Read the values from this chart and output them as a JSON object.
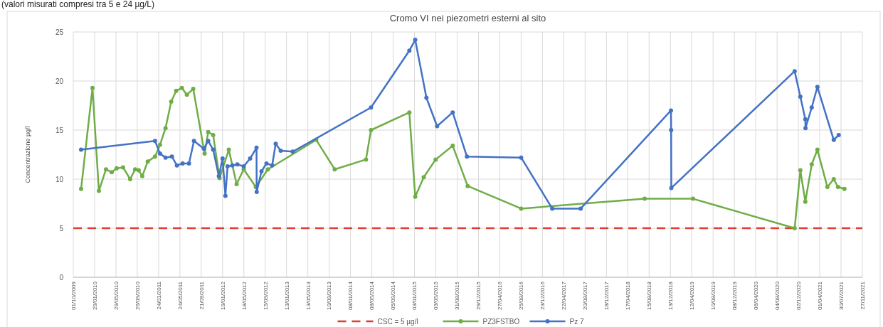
{
  "chart_data": {
    "type": "line",
    "title": "Cromo VI nei piezometri esterni al sito",
    "ylabel": "Concentrazione µg/l",
    "annotations": [
      "(valori misurati compresi tra 5 e 24 µg/L)"
    ],
    "xlim": [
      "2009-10-01",
      "2021-11-27"
    ],
    "xticks": [
      {
        "value": "2009-10-01",
        "label": "01/10/2009"
      },
      {
        "value": "2010-01-29",
        "label": "29/01/2010"
      },
      {
        "value": "2010-05-29",
        "label": "29/05/2010"
      },
      {
        "value": "2010-09-26",
        "label": "26/09/2010"
      },
      {
        "value": "2011-01-24",
        "label": "24/01/2011"
      },
      {
        "value": "2011-05-24",
        "label": "24/05/2011"
      },
      {
        "value": "2011-09-21",
        "label": "21/09/2011"
      },
      {
        "value": "2012-01-19",
        "label": "19/01/2012"
      },
      {
        "value": "2012-05-18",
        "label": "18/05/2012"
      },
      {
        "value": "2012-09-15",
        "label": "15/09/2012"
      },
      {
        "value": "2013-01-13",
        "label": "13/01/2013"
      },
      {
        "value": "2013-05-13",
        "label": "13/05/2013"
      },
      {
        "value": "2013-09-10",
        "label": "10/09/2013"
      },
      {
        "value": "2014-01-08",
        "label": "08/01/2014"
      },
      {
        "value": "2014-05-08",
        "label": "08/05/2014"
      },
      {
        "value": "2014-09-05",
        "label": "05/09/2014"
      },
      {
        "value": "2015-01-03",
        "label": "03/01/2015"
      },
      {
        "value": "2015-05-03",
        "label": "03/05/2015"
      },
      {
        "value": "2015-08-31",
        "label": "31/08/2015"
      },
      {
        "value": "2015-12-29",
        "label": "29/12/2015"
      },
      {
        "value": "2016-04-27",
        "label": "27/04/2016"
      },
      {
        "value": "2016-08-25",
        "label": "25/08/2016"
      },
      {
        "value": "2016-12-23",
        "label": "23/12/2016"
      },
      {
        "value": "2017-04-22",
        "label": "22/04/2017"
      },
      {
        "value": "2017-08-20",
        "label": "20/08/2017"
      },
      {
        "value": "2017-12-18",
        "label": "18/12/2017"
      },
      {
        "value": "2018-04-17",
        "label": "17/04/2018"
      },
      {
        "value": "2018-08-15",
        "label": "15/08/2018"
      },
      {
        "value": "2018-12-13",
        "label": "13/12/2018"
      },
      {
        "value": "2019-04-12",
        "label": "12/04/2019"
      },
      {
        "value": "2019-08-10",
        "label": "10/08/2019"
      },
      {
        "value": "2019-12-08",
        "label": "08/12/2019"
      },
      {
        "value": "2020-04-06",
        "label": "06/04/2020"
      },
      {
        "value": "2020-08-04",
        "label": "04/08/2020"
      },
      {
        "value": "2020-12-02",
        "label": "02/12/2020"
      },
      {
        "value": "2021-04-01",
        "label": "01/04/2021"
      },
      {
        "value": "2021-07-30",
        "label": "30/07/2021"
      },
      {
        "value": "2021-11-27",
        "label": "27/11/2021"
      }
    ],
    "ylim": [
      0,
      25
    ],
    "yticks": [
      0,
      5,
      10,
      15,
      20,
      25
    ],
    "grid": true,
    "legend": "bottom",
    "marker": "circle",
    "ref_lines": [
      {
        "axis": "y",
        "value": 5,
        "label": "CSC = 5 µg/l",
        "color": "#e03c31",
        "line_style": "dashed"
      }
    ],
    "series": [
      {
        "name": "PZ3FSTBO",
        "color": "#70ad47",
        "x": [
          "2009-11-14",
          "2010-01-17",
          "2010-02-22",
          "2010-04-03",
          "2010-05-05",
          "2010-06-02",
          "2010-07-08",
          "2010-08-17",
          "2010-09-14",
          "2010-10-04",
          "2010-10-24",
          "2010-11-24",
          "2011-01-04",
          "2011-02-01",
          "2011-03-04",
          "2011-04-05",
          "2011-05-03",
          "2011-06-04",
          "2011-07-02",
          "2011-08-07",
          "2011-10-10",
          "2011-10-30",
          "2011-11-27",
          "2012-01-02",
          "2012-02-23",
          "2012-04-07",
          "2012-05-17",
          "2012-07-24",
          "2012-09-30",
          "2013-06-29",
          "2013-10-11",
          "2014-04-05",
          "2014-05-03",
          "2014-12-05",
          "2015-01-07",
          "2015-02-24",
          "2015-05-02",
          "2015-08-06",
          "2015-10-29",
          "2016-08-25",
          "2018-07-21",
          "2019-04-19",
          "2020-11-11",
          "2020-12-13",
          "2021-01-10",
          "2021-02-15",
          "2021-03-19",
          "2021-05-14",
          "2021-06-19",
          "2021-07-13",
          "2021-08-18"
        ],
        "values": [
          9.0,
          19.3,
          8.8,
          11.0,
          10.7,
          11.1,
          11.2,
          10.0,
          11.0,
          10.9,
          10.3,
          11.8,
          12.3,
          13.5,
          15.2,
          17.9,
          19.0,
          19.3,
          18.6,
          19.2,
          12.6,
          14.8,
          14.5,
          10.1,
          13.0,
          9.5,
          11.0,
          9.2,
          11.0,
          14.0,
          11.0,
          12.0,
          15.0,
          16.8,
          8.2,
          10.2,
          12.0,
          13.4,
          9.3,
          7.0,
          8.0,
          8.0,
          5.0,
          10.9,
          7.7,
          11.5,
          13.0,
          9.2,
          10.0,
          9.2,
          9.0
        ]
      },
      {
        "name": "Pz 7",
        "color": "#4472c4",
        "x": [
          "2009-11-14",
          "2011-01-04",
          "2011-02-01",
          "2011-03-04",
          "2011-04-09",
          "2011-05-07",
          "2011-06-08",
          "2011-07-14",
          "2011-08-11",
          "2011-10-06",
          "2011-10-30",
          "2011-11-27",
          "2011-12-29",
          "2012-01-19",
          "2012-02-04",
          "2012-02-16",
          "2012-03-14",
          "2012-04-11",
          "2012-05-17",
          "2012-06-22",
          "2012-07-28",
          "2012-07-29",
          "2012-08-25",
          "2012-09-22",
          "2012-10-24",
          "2012-11-13",
          "2012-12-11",
          "2013-02-17",
          "2014-05-03",
          "2014-12-05",
          "2015-01-07",
          "2015-03-11",
          "2015-05-10",
          "2015-08-06",
          "2015-10-25",
          "2016-08-25",
          "2017-02-16",
          "2017-07-26",
          "2018-12-16",
          "2018-12-17",
          "2018-12-18",
          "2020-11-11",
          "2020-12-13",
          "2021-01-10",
          "2021-01-11",
          "2021-02-15",
          "2021-03-19",
          "2021-06-19",
          "2021-07-17"
        ],
        "values": [
          13.0,
          13.9,
          12.6,
          12.2,
          12.3,
          11.4,
          11.6,
          11.6,
          13.9,
          13.1,
          13.9,
          13.0,
          10.3,
          12.1,
          8.3,
          11.3,
          11.4,
          11.5,
          11.3,
          12.1,
          13.2,
          8.7,
          10.8,
          11.6,
          11.4,
          13.6,
          12.9,
          12.8,
          17.3,
          23.1,
          24.2,
          18.3,
          15.4,
          16.8,
          12.3,
          12.2,
          7.0,
          7.0,
          17.0,
          15.0,
          9.1,
          21.0,
          18.4,
          16.1,
          15.2,
          17.3,
          19.4,
          14.0,
          14.5
        ]
      }
    ]
  }
}
